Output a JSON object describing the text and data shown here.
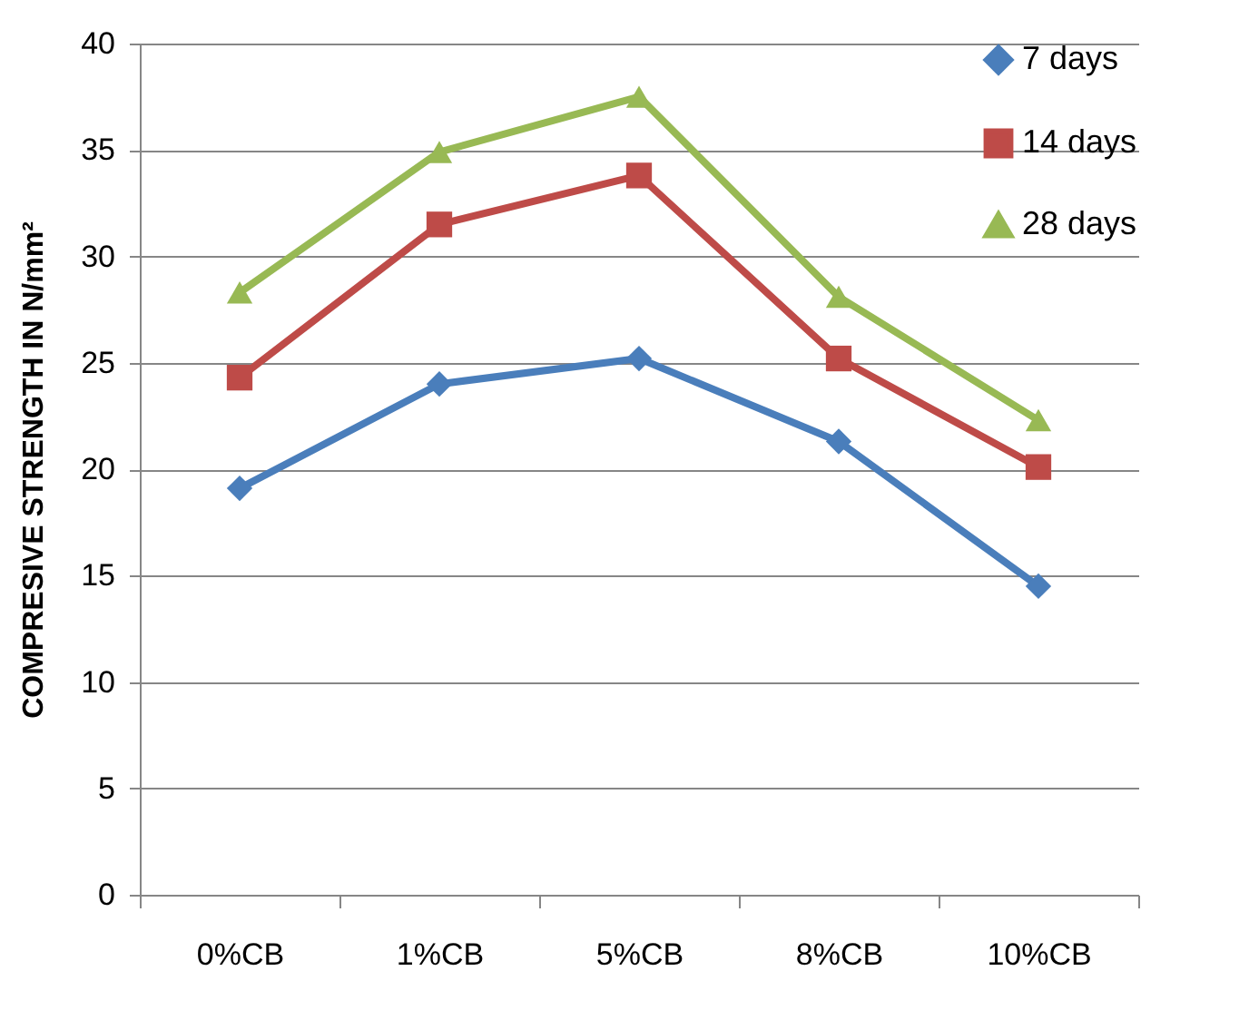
{
  "chart_data": {
    "type": "line",
    "ylabel": "COMPRESIVE STRENGTH IN N/mm²",
    "categories": [
      "0%CB",
      "1%CB",
      "5%CB",
      "8%CB",
      "10%CB"
    ],
    "series": [
      {
        "name": "7 days",
        "color": "#4a7ebb",
        "marker": "diamond",
        "values": [
          19.1,
          24.0,
          25.2,
          21.3,
          14.5
        ]
      },
      {
        "name": "14 days",
        "color": "#be4b48",
        "marker": "square",
        "values": [
          24.3,
          31.5,
          33.8,
          25.2,
          20.1
        ]
      },
      {
        "name": "28 days",
        "color": "#98b954",
        "marker": "triangle",
        "values": [
          28.3,
          34.9,
          37.5,
          28.1,
          22.3
        ]
      }
    ],
    "ylim": [
      0,
      40
    ],
    "yticks": [
      0,
      5,
      10,
      15,
      20,
      25,
      30,
      35,
      40
    ],
    "grid": "y",
    "legend": "top right"
  }
}
